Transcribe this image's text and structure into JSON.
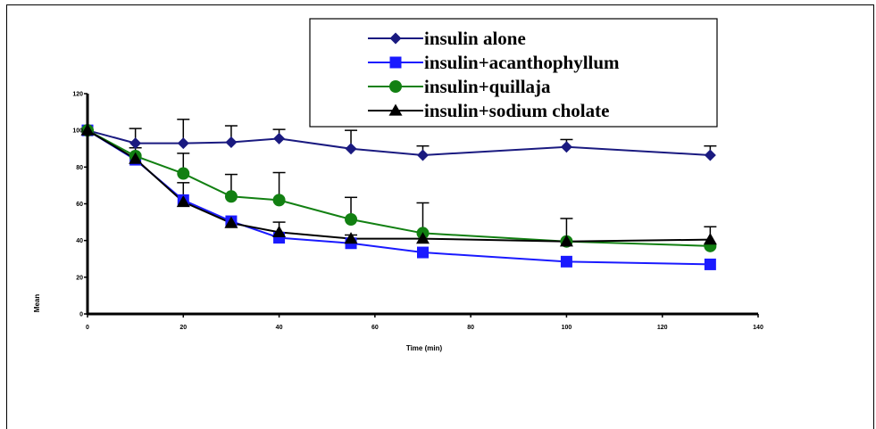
{
  "chart_data": {
    "type": "line",
    "title": "",
    "xlabel": "Time (min)",
    "ylabel": "Mean",
    "xlim": [
      0,
      140
    ],
    "ylim": [
      0,
      120
    ],
    "xticks": [
      0,
      20,
      40,
      60,
      80,
      100,
      120,
      140
    ],
    "yticks": [
      0,
      20,
      40,
      60,
      80,
      100,
      120
    ],
    "grid": false,
    "legend_position": "top-right",
    "x": [
      0,
      10,
      20,
      30,
      40,
      55,
      70,
      100,
      130
    ],
    "series": [
      {
        "name": "insulin alone",
        "color": "#1a1a80",
        "marker": "diamond",
        "values": [
          100,
          93,
          93,
          93.5,
          95.5,
          90,
          86.5,
          91,
          86.5
        ],
        "error": [
          0,
          8,
          13,
          9,
          5,
          10,
          5,
          4,
          5
        ]
      },
      {
        "name": "insulin+acanthophyllum",
        "color": "#1a1aff",
        "marker": "square",
        "values": [
          100,
          84,
          62,
          50.5,
          41.5,
          38.5,
          33.5,
          28.5,
          27
        ],
        "error": [
          0,
          0,
          0,
          0,
          0,
          0,
          0,
          0,
          0
        ]
      },
      {
        "name": "insulin+quillaja",
        "color": "#128012",
        "marker": "circle",
        "values": [
          100,
          86,
          76.5,
          64,
          62,
          51.5,
          44,
          39.5,
          37
        ],
        "error": [
          0,
          0,
          11,
          12,
          15,
          12,
          16.5,
          12.5,
          0
        ]
      },
      {
        "name": "insulin+sodium cholate",
        "color": "#000000",
        "marker": "triangle",
        "values": [
          100,
          84.5,
          61,
          49.5,
          44.5,
          41,
          41,
          39.5,
          40.5
        ],
        "error": [
          0,
          6,
          10.5,
          0,
          5.5,
          2,
          0,
          0,
          7
        ]
      }
    ]
  }
}
